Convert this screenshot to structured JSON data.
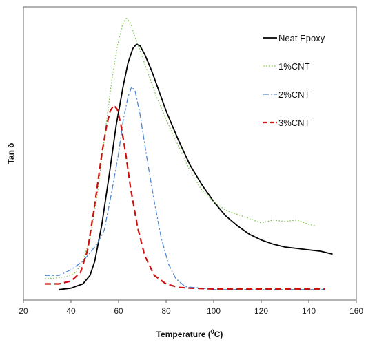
{
  "chart_data": {
    "type": "line",
    "xlabel_main": "Temperature (",
    "xlabel_sup": "0",
    "xlabel_tail": "C)",
    "ylabel": "Tan δ",
    "xlim": [
      20,
      160
    ],
    "ylim": [
      0,
      1
    ],
    "x_ticks": [
      "20",
      "40",
      "60",
      "80",
      "100",
      "120",
      "140",
      "160"
    ],
    "grid": false,
    "legend_position": "top-right",
    "series": [
      {
        "name": "Neat Epoxy",
        "color": "#000000",
        "style": "solid",
        "points": [
          [
            35,
            0.02
          ],
          [
            40,
            0.025
          ],
          [
            45,
            0.04
          ],
          [
            48,
            0.07
          ],
          [
            50,
            0.12
          ],
          [
            53,
            0.25
          ],
          [
            56,
            0.42
          ],
          [
            59,
            0.6
          ],
          [
            62,
            0.74
          ],
          [
            64,
            0.82
          ],
          [
            66,
            0.87
          ],
          [
            67.5,
            0.885
          ],
          [
            69,
            0.88
          ],
          [
            71,
            0.85
          ],
          [
            74,
            0.79
          ],
          [
            77,
            0.72
          ],
          [
            80,
            0.65
          ],
          [
            85,
            0.55
          ],
          [
            90,
            0.46
          ],
          [
            95,
            0.39
          ],
          [
            100,
            0.33
          ],
          [
            105,
            0.28
          ],
          [
            110,
            0.245
          ],
          [
            115,
            0.215
          ],
          [
            120,
            0.195
          ],
          [
            125,
            0.18
          ],
          [
            130,
            0.17
          ],
          [
            135,
            0.165
          ],
          [
            140,
            0.16
          ],
          [
            145,
            0.155
          ],
          [
            150,
            0.145
          ]
        ]
      },
      {
        "name": "1%CNT",
        "color": "#6fbf3a",
        "style": "dotted",
        "points": [
          [
            29,
            0.06
          ],
          [
            33,
            0.06
          ],
          [
            38,
            0.065
          ],
          [
            42,
            0.08
          ],
          [
            45,
            0.12
          ],
          [
            48,
            0.2
          ],
          [
            51,
            0.35
          ],
          [
            54,
            0.55
          ],
          [
            57,
            0.75
          ],
          [
            59.5,
            0.88
          ],
          [
            61.5,
            0.95
          ],
          [
            63,
            0.98
          ],
          [
            65,
            0.96
          ],
          [
            67,
            0.91
          ],
          [
            70,
            0.84
          ],
          [
            73,
            0.77
          ],
          [
            76,
            0.7
          ],
          [
            80,
            0.62
          ],
          [
            85,
            0.53
          ],
          [
            90,
            0.44
          ],
          [
            95,
            0.37
          ],
          [
            100,
            0.33
          ],
          [
            105,
            0.3
          ],
          [
            110,
            0.285
          ],
          [
            115,
            0.27
          ],
          [
            120,
            0.255
          ],
          [
            125,
            0.265
          ],
          [
            130,
            0.26
          ],
          [
            135,
            0.265
          ],
          [
            140,
            0.25
          ],
          [
            143,
            0.245
          ]
        ]
      },
      {
        "name": "2%CNT",
        "color": "#4a86d4",
        "style": "dashdot",
        "points": [
          [
            29,
            0.07
          ],
          [
            35,
            0.07
          ],
          [
            40,
            0.09
          ],
          [
            45,
            0.12
          ],
          [
            48,
            0.15
          ],
          [
            51,
            0.18
          ],
          [
            54,
            0.23
          ],
          [
            57,
            0.36
          ],
          [
            60,
            0.5
          ],
          [
            62,
            0.62
          ],
          [
            64,
            0.7
          ],
          [
            65.5,
            0.735
          ],
          [
            67,
            0.72
          ],
          [
            69,
            0.64
          ],
          [
            72,
            0.48
          ],
          [
            75,
            0.33
          ],
          [
            78,
            0.2
          ],
          [
            81,
            0.11
          ],
          [
            84,
            0.06
          ],
          [
            88,
            0.03
          ],
          [
            95,
            0.025
          ],
          [
            100,
            0.02
          ],
          [
            110,
            0.02
          ],
          [
            120,
            0.02
          ],
          [
            130,
            0.02
          ],
          [
            140,
            0.02
          ],
          [
            147,
            0.02
          ]
        ]
      },
      {
        "name": "3%CNT",
        "color": "#cc1111",
        "style": "dashed",
        "points": [
          [
            29,
            0.04
          ],
          [
            35,
            0.04
          ],
          [
            40,
            0.05
          ],
          [
            44,
            0.08
          ],
          [
            47,
            0.16
          ],
          [
            50,
            0.32
          ],
          [
            53,
            0.5
          ],
          [
            55,
            0.6
          ],
          [
            56.5,
            0.65
          ],
          [
            58,
            0.67
          ],
          [
            59.5,
            0.655
          ],
          [
            61,
            0.6
          ],
          [
            63,
            0.5
          ],
          [
            65,
            0.38
          ],
          [
            68,
            0.24
          ],
          [
            71,
            0.14
          ],
          [
            75,
            0.07
          ],
          [
            80,
            0.04
          ],
          [
            85,
            0.028
          ],
          [
            90,
            0.025
          ],
          [
            100,
            0.022
          ],
          [
            110,
            0.022
          ],
          [
            120,
            0.022
          ],
          [
            130,
            0.022
          ],
          [
            140,
            0.022
          ],
          [
            147,
            0.022
          ]
        ]
      }
    ]
  }
}
